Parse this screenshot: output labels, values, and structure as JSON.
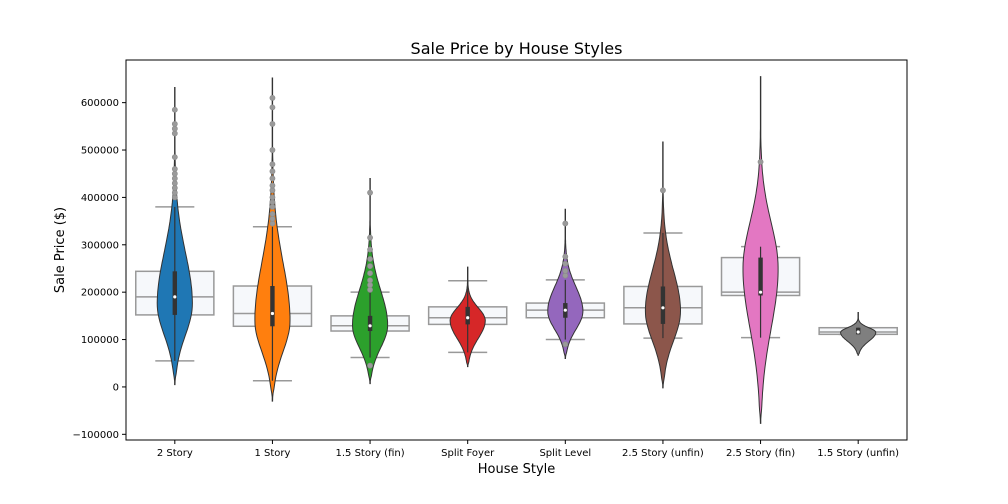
{
  "chart_data": {
    "type": "violin",
    "title": "Sale Price by House Styles",
    "xlabel": "House Style",
    "ylabel": "Sale Price ($)",
    "ylim": [
      -112000,
      690000
    ],
    "yticks": [
      -100000,
      0,
      100000,
      200000,
      300000,
      400000,
      500000,
      600000
    ],
    "ytick_labels": [
      "−100000",
      "0",
      "100000",
      "200000",
      "300000",
      "400000",
      "500000",
      "600000"
    ],
    "grid": false,
    "categories": [
      "2 Story",
      "1 Story",
      "1.5 Story (fin)",
      "Split Foyer",
      "Split Level",
      "2.5 Story (unfin)",
      "2.5 Story (fin)",
      "1.5 Story (unfin)"
    ],
    "series": [
      {
        "category": "2 Story",
        "color": "#1f77b4",
        "violin_min": 5000,
        "violin_max": 632000,
        "mode": 175000,
        "median": 190000,
        "box": {
          "q1": 152000,
          "median": 190000,
          "q3": 244000,
          "whisker_low": 55000,
          "whisker_high": 380000
        },
        "outliers": [
          400000,
          410000,
          420000,
          430000,
          440000,
          450000,
          460000,
          485000,
          535000,
          545000,
          555000,
          585000
        ]
      },
      {
        "category": "1 Story",
        "color": "#ff7f0e",
        "violin_min": -30000,
        "violin_max": 652000,
        "mode": 140000,
        "median": 155000,
        "box": {
          "q1": 128000,
          "median": 155000,
          "q3": 213000,
          "whisker_low": 13000,
          "whisker_high": 338000
        },
        "outliers": [
          345000,
          355000,
          365000,
          380000,
          390000,
          400000,
          415000,
          425000,
          440000,
          455000,
          470000,
          500000,
          555000,
          590000,
          610000
        ]
      },
      {
        "category": "1.5 Story (fin)",
        "color": "#2ca02c",
        "violin_min": 7000,
        "violin_max": 440000,
        "mode": 130000,
        "median": 129000,
        "box": {
          "q1": 118000,
          "median": 129000,
          "q3": 150000,
          "whisker_low": 62000,
          "whisker_high": 200000
        },
        "outliers": [
          205000,
          215000,
          225000,
          240000,
          255000,
          270000,
          290000,
          315000,
          410000,
          45000
        ]
      },
      {
        "category": "Split Foyer",
        "color": "#d62728",
        "violin_min": 43000,
        "violin_max": 253000,
        "mode": 140000,
        "median": 146000,
        "box": {
          "q1": 132000,
          "median": 146000,
          "q3": 169000,
          "whisker_low": 73000,
          "whisker_high": 224000
        },
        "outliers": []
      },
      {
        "category": "Split Level",
        "color": "#9467bd",
        "violin_min": 60000,
        "violin_max": 375000,
        "mode": 160000,
        "median": 162000,
        "box": {
          "q1": 146000,
          "median": 162000,
          "q3": 177000,
          "whisker_low": 100000,
          "whisker_high": 226000
        },
        "outliers": [
          235000,
          245000,
          260000,
          275000,
          345000,
          90000
        ]
      },
      {
        "category": "2.5 Story (unfin)",
        "color": "#8c564b",
        "violin_min": -2000,
        "violin_max": 517000,
        "mode": 160000,
        "median": 167000,
        "box": {
          "q1": 133000,
          "median": 167000,
          "q3": 212000,
          "whisker_low": 103000,
          "whisker_high": 325000
        },
        "outliers": [
          415000
        ]
      },
      {
        "category": "2.5 Story (fin)",
        "color": "#e377c2",
        "violin_min": -77000,
        "violin_max": 655000,
        "mode": 250000,
        "median": 200000,
        "box": {
          "q1": 193000,
          "median": 200000,
          "q3": 273000,
          "whisker_low": 104000,
          "whisker_high": 296000
        },
        "outliers": [
          475000
        ]
      },
      {
        "category": "1.5 Story (unfin)",
        "color": "#7f7f7f",
        "violin_min": 67000,
        "violin_max": 157000,
        "mode": 115000,
        "median": 116000,
        "box": {
          "q1": 111000,
          "median": 116000,
          "q3": 125000,
          "whisker_low": 111000,
          "whisker_high": 125000
        },
        "outliers": []
      }
    ]
  }
}
